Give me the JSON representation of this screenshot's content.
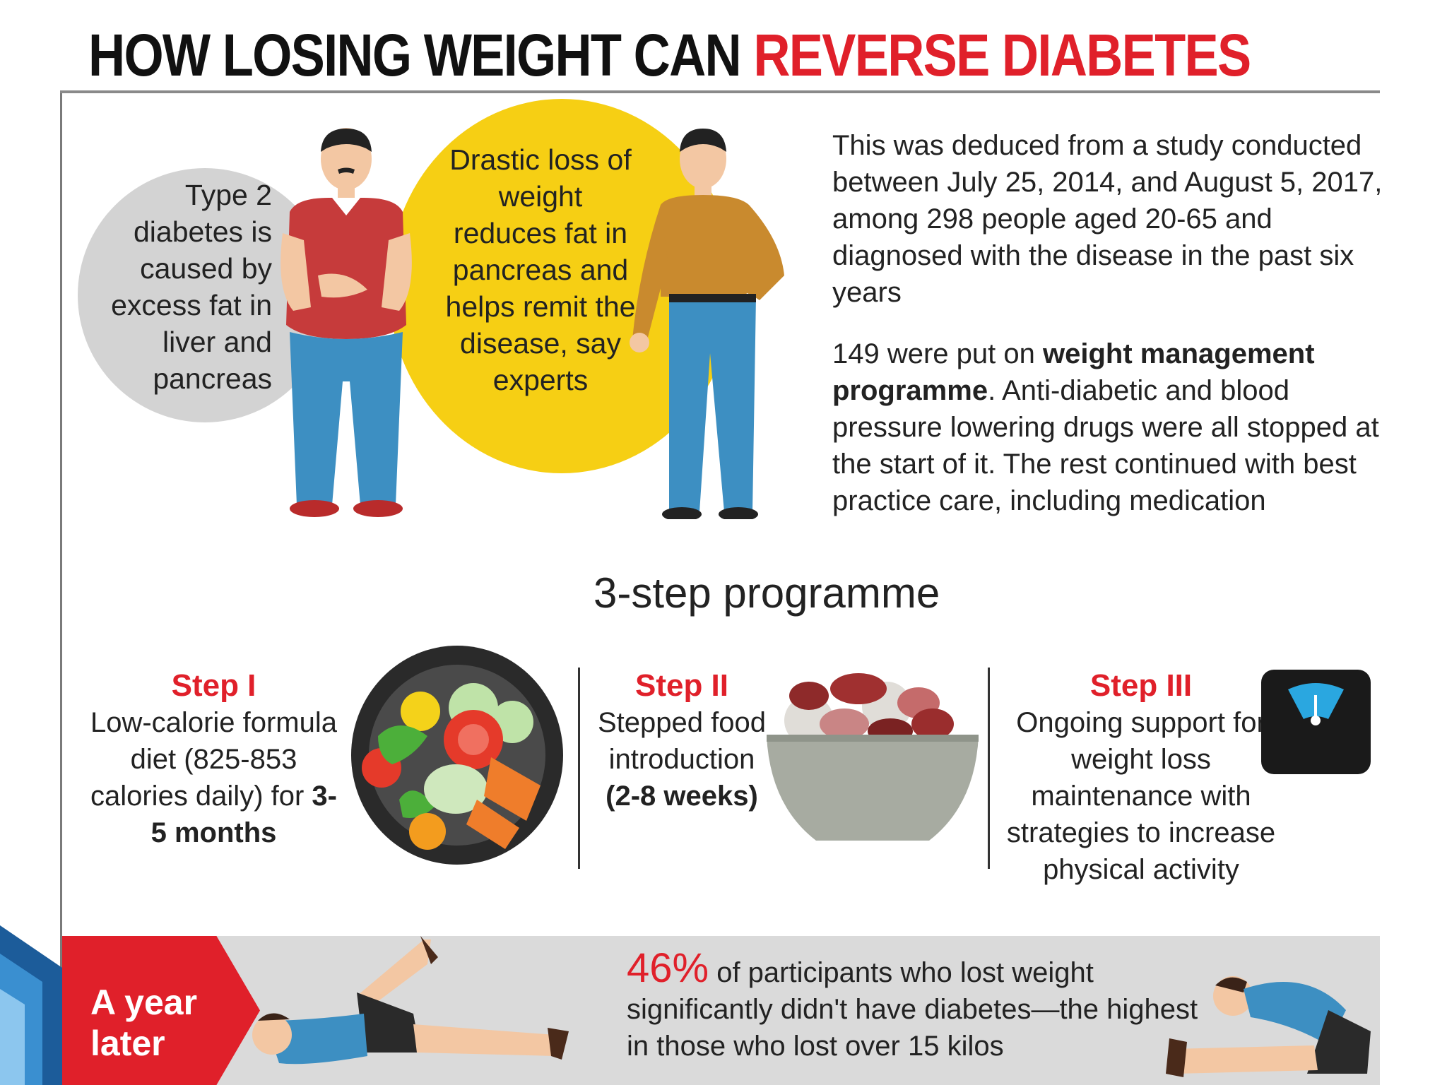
{
  "header": {
    "title_part1": "HOW LOSING WEIGHT CAN ",
    "title_part2": "REVERSE DIABETES"
  },
  "intro": {
    "cause_text": "Type 2 diabetes is caused by excess fat in liver and pancreas",
    "effect_text": "Drastic loss of weight reduces fat in pancreas and helps remit the disease, say experts"
  },
  "study": {
    "paragraph1": "This was deduced from a study conducted between July 25, 2014, and August 5, 2017, among 298 people aged 20-65 and diagnosed with the disease in the past six years",
    "paragraph2_start": "149 were put on ",
    "paragraph2_bold": "weight management programme",
    "paragraph2_end": ". Anti-diabetic and blood pressure lowering drugs were all stopped at the start of it. The rest continued with best practice care, including medication"
  },
  "programme": {
    "title": "3-step programme",
    "steps": [
      {
        "label": "Step I",
        "text": "Low-calorie formula diet (825-853 calories daily) for ",
        "bold": "3-5 months"
      },
      {
        "label": "Step II",
        "text": "Stepped food introduction ",
        "bold": "(2-8 weeks)"
      },
      {
        "label": "Step III",
        "text": "Ongoing support for weight loss maintenance with strategies to increase physical activity",
        "bold": ""
      }
    ]
  },
  "result": {
    "tag": "A year later",
    "percent": "46%",
    "text": " of participants who lost weight significantly didn't have diabetes—the highest in those who lost over 15 kilos"
  },
  "colors": {
    "accent_red": "#e0202a",
    "yellow": "#f6cf14",
    "grey": "#d3d3d3"
  },
  "icons": [
    "overweight-man-icon",
    "slim-man-icon",
    "salad-bowl-icon",
    "food-bowl-icon",
    "weighing-scale-icon",
    "stretching-man-icon",
    "toe-touch-man-icon"
  ]
}
